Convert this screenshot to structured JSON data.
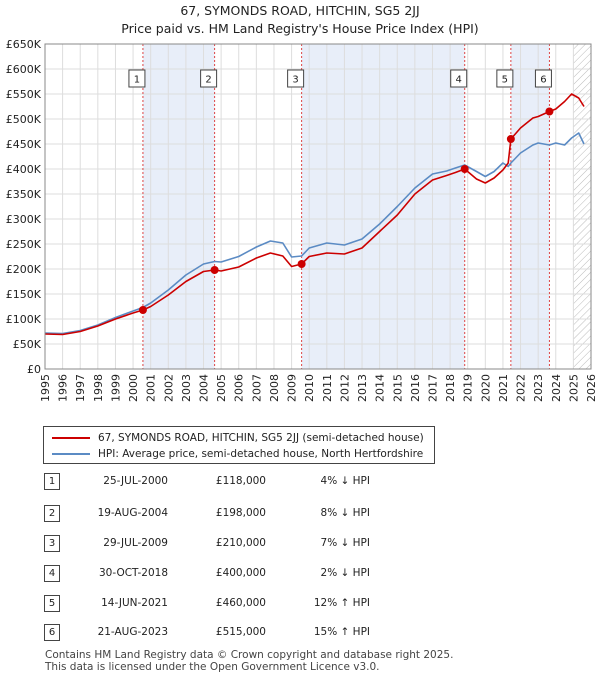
{
  "title_line1": "67, SYMONDS ROAD, HITCHIN, SG5 2JJ",
  "title_line2": "Price paid vs. HM Land Registry's House Price Index (HPI)",
  "chart_data": {
    "type": "line",
    "title": "67, SYMONDS ROAD, HITCHIN, SG5 2JJ — Price paid vs. HM Land Registry's House Price Index (HPI)",
    "xlabel": "",
    "ylabel": "",
    "xlim": [
      1995,
      2026
    ],
    "ylim": [
      0,
      650000
    ],
    "y_ticks": [
      0,
      50000,
      100000,
      150000,
      200000,
      250000,
      300000,
      350000,
      400000,
      450000,
      500000,
      550000,
      600000,
      650000
    ],
    "y_tick_labels": [
      "£0",
      "£50K",
      "£100K",
      "£150K",
      "£200K",
      "£250K",
      "£300K",
      "£350K",
      "£400K",
      "£450K",
      "£500K",
      "£550K",
      "£600K",
      "£650K"
    ],
    "x_ticks": [
      1995,
      1996,
      1997,
      1998,
      1999,
      2000,
      2001,
      2002,
      2003,
      2004,
      2005,
      2006,
      2007,
      2008,
      2009,
      2010,
      2011,
      2012,
      2013,
      2014,
      2015,
      2016,
      2017,
      2018,
      2019,
      2020,
      2021,
      2022,
      2023,
      2024,
      2025,
      2026
    ],
    "grid": true,
    "legend_position": "below chart",
    "series": [
      {
        "name": "67, SYMONDS ROAD, HITCHIN, SG5 2JJ (semi-detached house)",
        "color": "#cc0000",
        "x": [
          1995.0,
          1996.0,
          1997.0,
          1998.0,
          1999.0,
          2000.0,
          2000.56,
          2001.0,
          2002.0,
          2003.0,
          2004.0,
          2004.63,
          2005.0,
          2006.0,
          2007.0,
          2007.8,
          2008.5,
          2009.0,
          2009.57,
          2010.0,
          2011.0,
          2012.0,
          2013.0,
          2014.0,
          2015.0,
          2016.0,
          2017.0,
          2017.8,
          2018.3,
          2018.83,
          2019.5,
          2020.0,
          2020.5,
          2021.0,
          2021.3,
          2021.45,
          2022.0,
          2022.7,
          2023.0,
          2023.64,
          2024.0,
          2024.5,
          2024.9,
          2025.3,
          2025.6
        ],
        "y": [
          70000,
          69000,
          75000,
          86000,
          100000,
          112000,
          118000,
          125000,
          148000,
          175000,
          195000,
          198000,
          196000,
          204000,
          222000,
          232000,
          226000,
          205000,
          210000,
          225000,
          232000,
          230000,
          242000,
          275000,
          308000,
          350000,
          378000,
          387000,
          393000,
          400000,
          380000,
          372000,
          382000,
          398000,
          412000,
          460000,
          482000,
          502000,
          505000,
          515000,
          520000,
          535000,
          550000,
          542000,
          525000
        ]
      },
      {
        "name": "HPI: Average price, semi-detached house, North Hertfordshire",
        "color": "#5b8bc4",
        "x": [
          1995.0,
          1996.0,
          1997.0,
          1998.0,
          1999.0,
          2000.0,
          2000.56,
          2001.0,
          2002.0,
          2003.0,
          2004.0,
          2004.63,
          2005.0,
          2006.0,
          2007.0,
          2007.8,
          2008.5,
          2009.0,
          2009.57,
          2010.0,
          2011.0,
          2012.0,
          2013.0,
          2014.0,
          2015.0,
          2016.0,
          2017.0,
          2017.8,
          2018.3,
          2018.83,
          2019.5,
          2020.0,
          2020.5,
          2021.0,
          2021.3,
          2021.45,
          2022.0,
          2022.7,
          2023.0,
          2023.64,
          2024.0,
          2024.5,
          2024.9,
          2025.3,
          2025.6
        ],
        "y": [
          72000,
          71000,
          77000,
          88000,
          103000,
          116000,
          123000,
          132000,
          158000,
          188000,
          210000,
          215000,
          214000,
          225000,
          244000,
          256000,
          252000,
          224000,
          226000,
          242000,
          252000,
          248000,
          260000,
          290000,
          325000,
          362000,
          390000,
          396000,
          402000,
          408000,
          395000,
          385000,
          395000,
          412000,
          405000,
          412000,
          432000,
          448000,
          452000,
          448000,
          452000,
          448000,
          462000,
          472000,
          450000
        ]
      }
    ],
    "sales": [
      {
        "label": "1",
        "date": "25-JUL-2000",
        "x": 2000.56,
        "price": 118000
      },
      {
        "label": "2",
        "date": "19-AUG-2004",
        "x": 2004.63,
        "price": 198000
      },
      {
        "label": "3",
        "date": "29-JUL-2009",
        "x": 2009.57,
        "price": 210000
      },
      {
        "label": "4",
        "date": "30-OCT-2018",
        "x": 2018.83,
        "price": 400000
      },
      {
        "label": "5",
        "date": "14-JUN-2021",
        "x": 2021.45,
        "price": 460000
      },
      {
        "label": "6",
        "date": "21-AUG-2023",
        "x": 2023.64,
        "price": 515000
      }
    ],
    "shaded_spans": [
      [
        2000.56,
        2004.63
      ],
      [
        2009.57,
        2018.83
      ],
      [
        2021.45,
        2023.64
      ]
    ],
    "future_hatch_from": 2025.0
  },
  "legend": {
    "series1_label": "67, SYMONDS ROAD, HITCHIN, SG5 2JJ (semi-detached house)",
    "series2_label": "HPI: Average price, semi-detached house, North Hertfordshire"
  },
  "table": [
    {
      "num": "1",
      "date": "25-JUL-2000",
      "price": "£118,000",
      "hpi": "4% ↓ HPI"
    },
    {
      "num": "2",
      "date": "19-AUG-2004",
      "price": "£198,000",
      "hpi": "8% ↓ HPI"
    },
    {
      "num": "3",
      "date": "29-JUL-2009",
      "price": "£210,000",
      "hpi": "7% ↓ HPI"
    },
    {
      "num": "4",
      "date": "30-OCT-2018",
      "price": "£400,000",
      "hpi": "2% ↓ HPI"
    },
    {
      "num": "5",
      "date": "14-JUN-2021",
      "price": "£460,000",
      "hpi": "12% ↑ HPI"
    },
    {
      "num": "6",
      "date": "21-AUG-2023",
      "price": "£515,000",
      "hpi": "15% ↑ HPI"
    }
  ],
  "footer": {
    "line1": "Contains HM Land Registry data © Crown copyright and database right 2025.",
    "line2": "This data is licensed under the Open Government Licence v3.0."
  }
}
